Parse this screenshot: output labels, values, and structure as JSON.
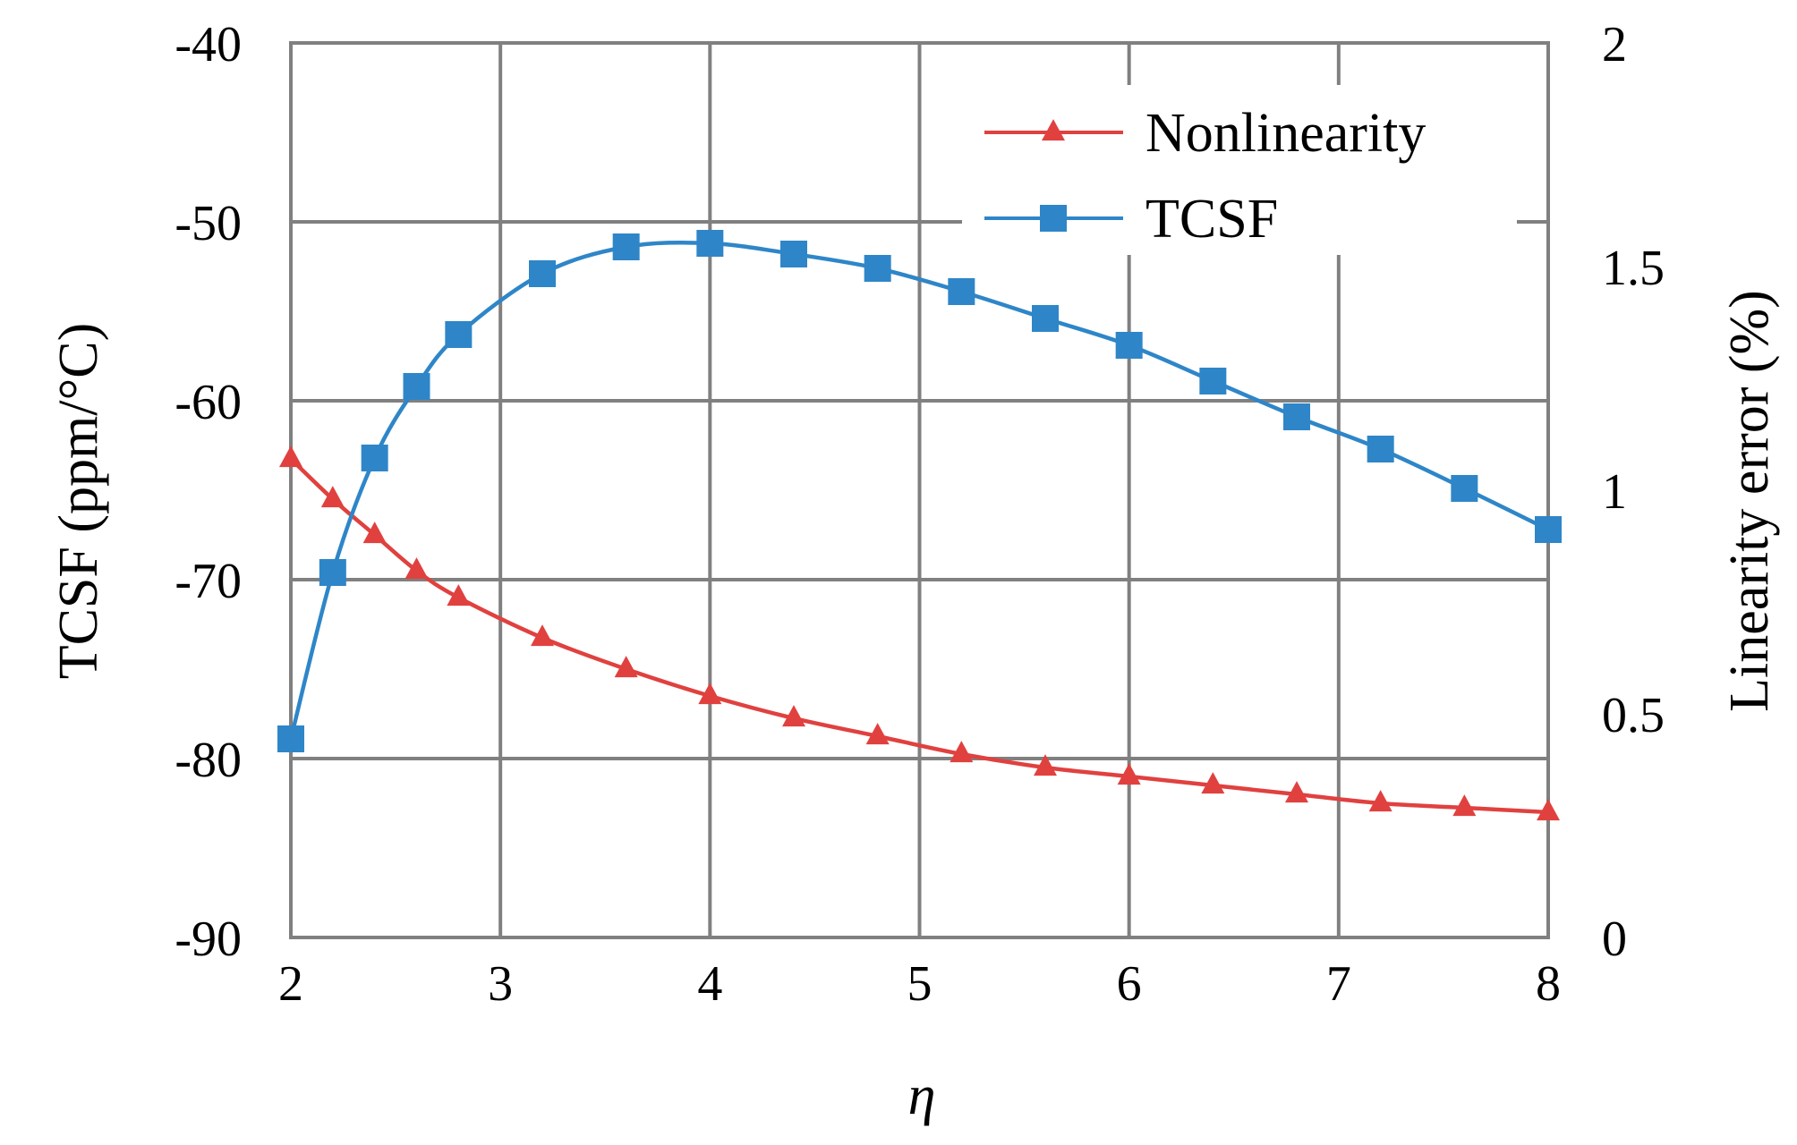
{
  "chart_data": {
    "type": "line",
    "xlabel": "η",
    "ylabel_left": "TCSF (ppm/°C)",
    "ylabel_right": "Linearity error (%)",
    "xlim": [
      2,
      8
    ],
    "ylim_left": [
      -90,
      -40
    ],
    "ylim_right": [
      0,
      2
    ],
    "x_ticks": [
      "2",
      "3",
      "4",
      "5",
      "6",
      "7",
      "8"
    ],
    "y_ticks_left": [
      "-40",
      "-50",
      "-60",
      "-70",
      "-80",
      "-90"
    ],
    "y_ticks_right": [
      "2",
      "1.5",
      "1",
      "0.5",
      "0"
    ],
    "grid": true,
    "legend_position": "top-right",
    "series": [
      {
        "name": "Nonlinearity",
        "axis": "right",
        "color": "#e0413f",
        "marker": "triangle",
        "x": [
          2.0,
          2.2,
          2.4,
          2.6,
          2.8,
          3.2,
          3.6,
          4.0,
          4.4,
          4.8,
          5.2,
          5.6,
          6.0,
          6.4,
          6.8,
          7.2,
          7.6,
          8.0
        ],
        "y": [
          1.07,
          0.98,
          0.9,
          0.82,
          0.76,
          0.67,
          0.6,
          0.54,
          0.49,
          0.45,
          0.41,
          0.38,
          0.36,
          0.34,
          0.32,
          0.3,
          0.29,
          0.28
        ]
      },
      {
        "name": "TCSF",
        "axis": "left",
        "color": "#2e86c8",
        "marker": "square",
        "x": [
          2.0,
          2.2,
          2.4,
          2.6,
          2.8,
          3.2,
          3.6,
          4.0,
          4.4,
          4.8,
          5.2,
          5.6,
          6.0,
          6.4,
          6.8,
          7.2,
          7.6,
          8.0
        ],
        "y": [
          -78.9,
          -69.6,
          -63.2,
          -59.2,
          -56.3,
          -52.9,
          -51.4,
          -51.2,
          -51.8,
          -52.6,
          -53.9,
          -55.4,
          -56.9,
          -58.9,
          -60.9,
          -62.7,
          -64.9,
          -67.2
        ]
      }
    ]
  }
}
